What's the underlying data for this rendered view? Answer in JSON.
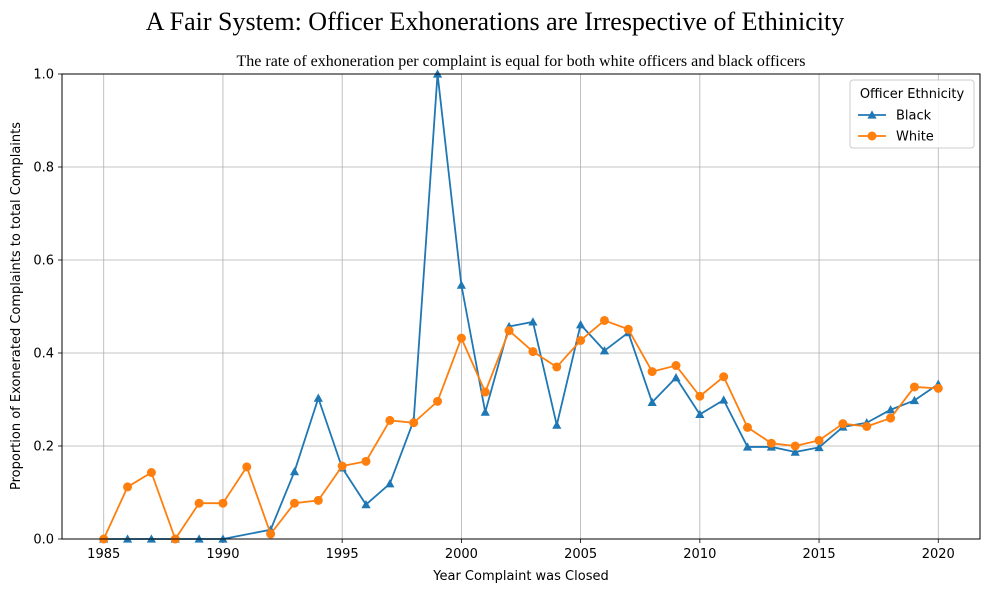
{
  "chart_data": {
    "type": "line",
    "title": "A Fair System: Officer Exhonerations are Irrespective of Ethinicity",
    "subtitle": "The rate of exhoneration per complaint is equal for both white officers and black officers",
    "xlabel": "Year Complaint was Closed",
    "ylabel": "Proportion of Exonerated Complaints to total Complaints",
    "xlim": [
      1983.25,
      2021.75
    ],
    "ylim": [
      0,
      1.0
    ],
    "xticks": [
      1985,
      1990,
      1995,
      2000,
      2005,
      2010,
      2015,
      2020
    ],
    "yticks": [
      0.0,
      0.2,
      0.4,
      0.6,
      0.8,
      1.0
    ],
    "ytick_labels": [
      "0.0",
      "0.2",
      "0.4",
      "0.6",
      "0.8",
      "1.0"
    ],
    "grid": true,
    "legend_title": "Officer Ethnicity",
    "legend_position": "top-right",
    "series": [
      {
        "name": "Black",
        "color": "#1f77b4",
        "marker": "triangle",
        "x": [
          1985,
          1986,
          1987,
          1988,
          1989,
          1990,
          1992,
          1993,
          1994,
          1995,
          1996,
          1997,
          1998,
          1999,
          2000,
          2001,
          2002,
          2003,
          2004,
          2005,
          2006,
          2007,
          2008,
          2009,
          2010,
          2011,
          2012,
          2013,
          2014,
          2015,
          2016,
          2017,
          2018,
          2019,
          2020
        ],
        "y": [
          0.0,
          0.0,
          0.0,
          0.0,
          0.0,
          0.0,
          0.02,
          0.145,
          0.303,
          0.153,
          0.074,
          0.119,
          0.255,
          1.0,
          0.546,
          0.273,
          0.457,
          0.467,
          0.245,
          0.461,
          0.405,
          0.444,
          0.294,
          0.347,
          0.268,
          0.299,
          0.198,
          0.198,
          0.187,
          0.197,
          0.241,
          0.25,
          0.278,
          0.298,
          0.333
        ]
      },
      {
        "name": "White",
        "color": "#ff7f0e",
        "marker": "circle",
        "x": [
          1985,
          1986,
          1987,
          1988,
          1989,
          1990,
          1991,
          1992,
          1993,
          1994,
          1995,
          1996,
          1997,
          1998,
          1999,
          2000,
          2001,
          2002,
          2003,
          2004,
          2005,
          2006,
          2007,
          2008,
          2009,
          2010,
          2011,
          2012,
          2013,
          2014,
          2015,
          2016,
          2017,
          2018,
          2019,
          2020
        ],
        "y": [
          0.0,
          0.112,
          0.143,
          0.0,
          0.077,
          0.077,
          0.155,
          0.011,
          0.077,
          0.083,
          0.157,
          0.167,
          0.255,
          0.25,
          0.296,
          0.432,
          0.316,
          0.448,
          0.403,
          0.37,
          0.427,
          0.47,
          0.451,
          0.36,
          0.373,
          0.307,
          0.349,
          0.24,
          0.206,
          0.2,
          0.212,
          0.248,
          0.242,
          0.26,
          0.327,
          0.324
        ]
      }
    ]
  }
}
